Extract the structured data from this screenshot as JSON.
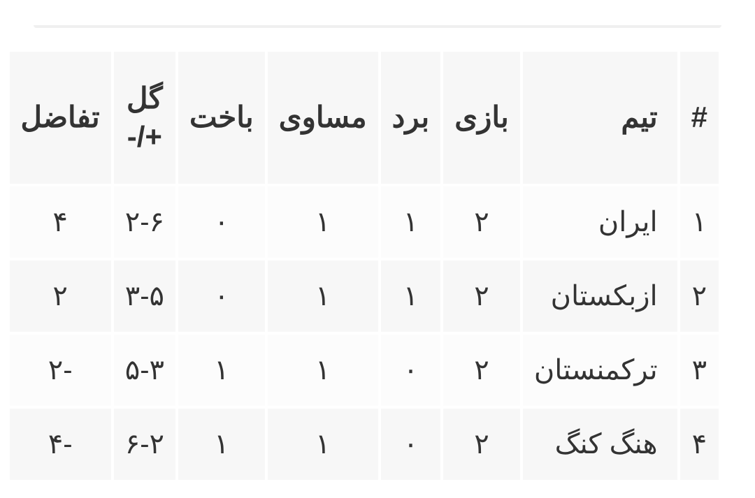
{
  "table": {
    "columns": [
      {
        "key": "rank",
        "label": "#",
        "class": "rank-col"
      },
      {
        "key": "team",
        "label": "تیم",
        "class": "team-col"
      },
      {
        "key": "played",
        "label": "بازی",
        "class": "num-col"
      },
      {
        "key": "win",
        "label": "برد",
        "class": "num-col"
      },
      {
        "key": "draw",
        "label": "مساوی",
        "class": "num-col"
      },
      {
        "key": "loss",
        "label": "باخت",
        "class": "num-col"
      },
      {
        "key": "goals",
        "label": "گل +/-",
        "class": "num-col"
      },
      {
        "key": "diff",
        "label": "تفاضل",
        "class": "num-col"
      }
    ],
    "rows": [
      {
        "rank": "۱",
        "team": "ایران",
        "played": "۲",
        "win": "۱",
        "draw": "۱",
        "loss": "۰",
        "goals": "۲-۶",
        "diff": "۴"
      },
      {
        "rank": "۲",
        "team": "ازبکستان",
        "played": "۲",
        "win": "۱",
        "draw": "۱",
        "loss": "۰",
        "goals": "۳-۵",
        "diff": "۲"
      },
      {
        "rank": "۳",
        "team": "ترکمنستان",
        "played": "۲",
        "win": "۰",
        "draw": "۱",
        "loss": "۱",
        "goals": "۵-۳",
        "diff": "-۲"
      },
      {
        "rank": "۴",
        "team": "هنگ کنگ",
        "played": "۲",
        "win": "۰",
        "draw": "۱",
        "loss": "۱",
        "goals": "۶-۲",
        "diff": "-۴"
      }
    ],
    "header_bg": "#f7f7f7",
    "row_bg": "#fcfcfc",
    "row_alt_bg": "#f7f7f7",
    "text_color": "#333333",
    "header_fontsize": 42,
    "cell_fontsize": 40
  }
}
